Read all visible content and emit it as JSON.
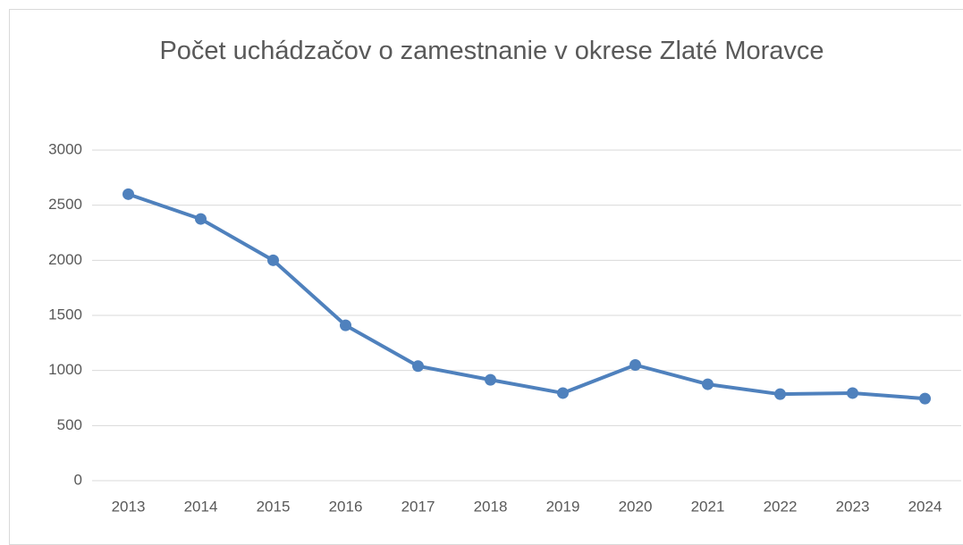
{
  "chart_data": {
    "type": "line",
    "title": "Počet uchádzačov o zamestnanie v okrese Zlaté Moravce",
    "categories": [
      "2013",
      "2014",
      "2015",
      "2016",
      "2017",
      "2018",
      "2019",
      "2020",
      "2021",
      "2022",
      "2023",
      "2024"
    ],
    "series": [
      {
        "color": "#4f81bd",
        "values": [
          2600,
          2375,
          2000,
          1410,
          1040,
          915,
          795,
          1050,
          875,
          785,
          795,
          745
        ]
      }
    ],
    "ylim": [
      0,
      3000
    ],
    "yticks": [
      0,
      500,
      1000,
      1500,
      2000,
      2500,
      3000
    ],
    "grid": true
  }
}
